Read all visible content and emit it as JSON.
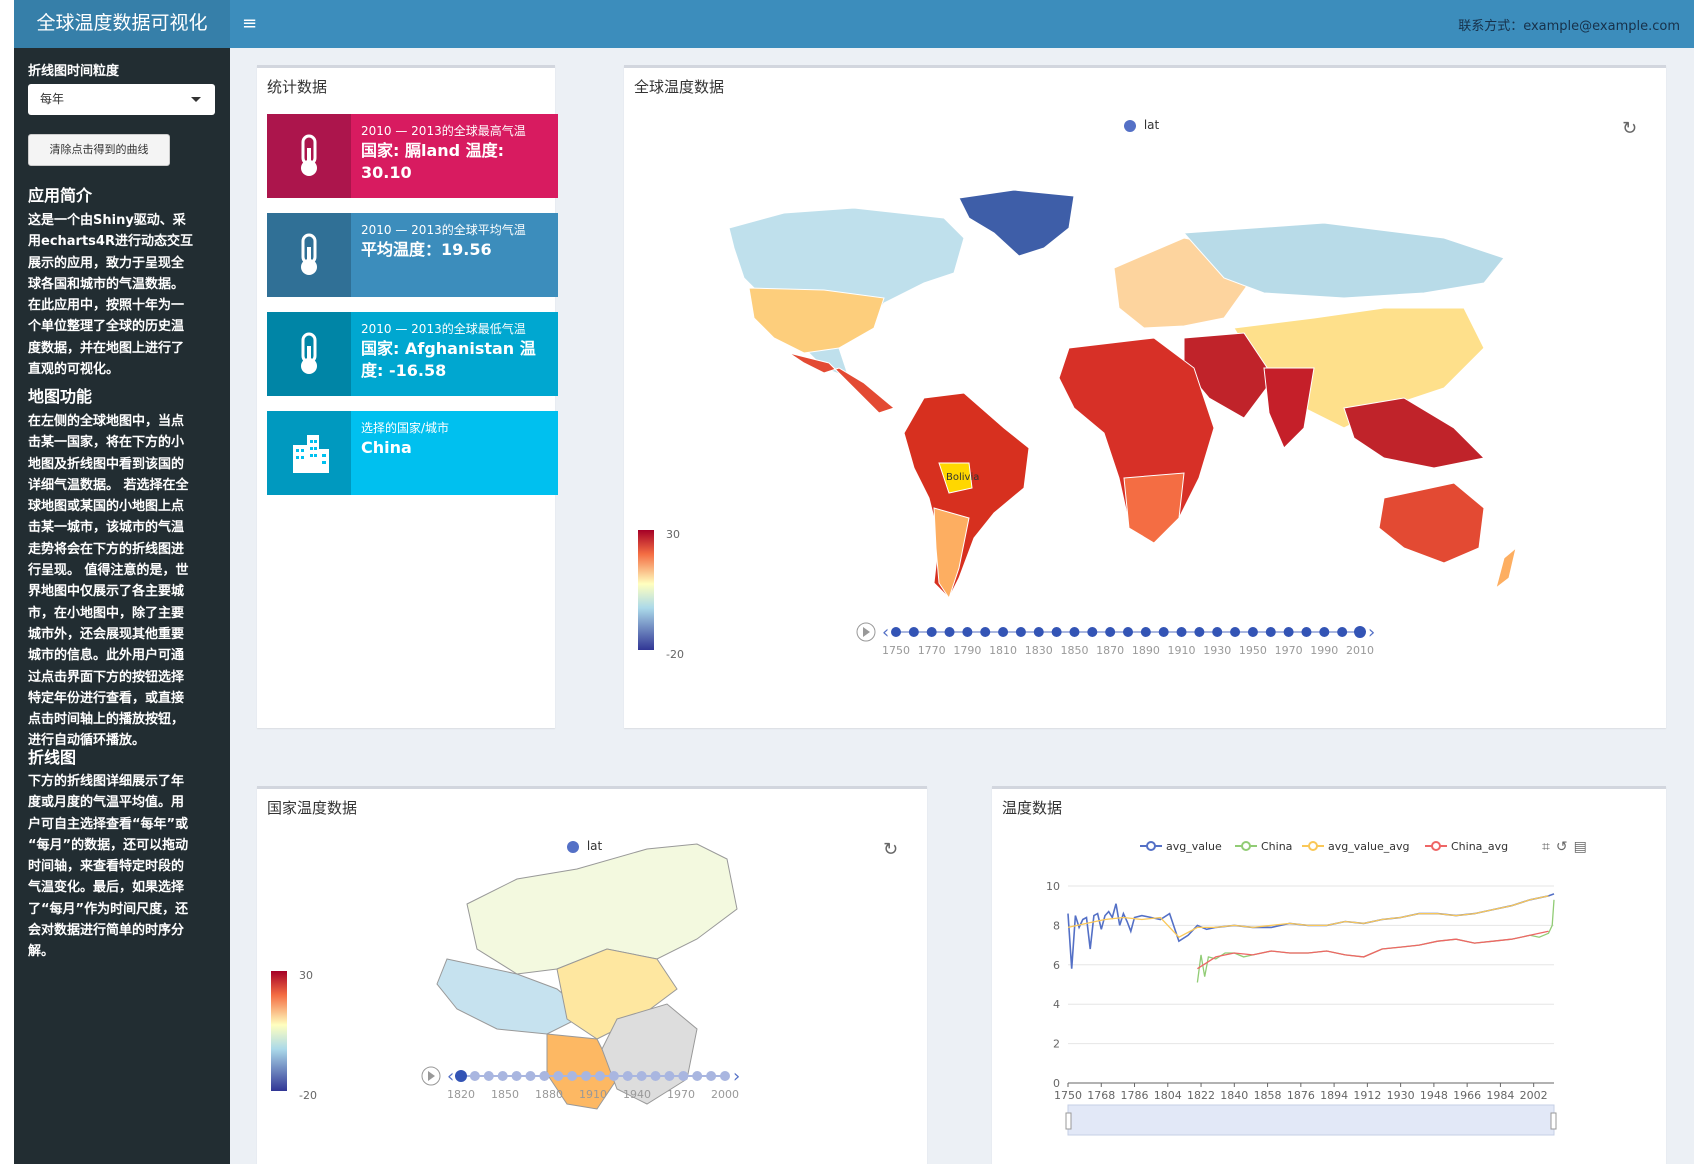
{
  "header": {
    "app_title": "全球温度数据可视化",
    "menu_icon": "hamburger-icon",
    "contact": "联系方式：example@example.com"
  },
  "sidebar": {
    "granularity_label": "折线图时间粒度",
    "granularity_value": "每年",
    "clear_button": "清除点击得到的曲线",
    "sections": [
      {
        "heading": "应用简介",
        "lines": [
          "这是一个由Shiny驱动、采",
          "用echarts4R进行动态交互",
          "展示的应用，致力于呈现全",
          "球各国和城市的气温数据。",
          "在此应用中，按照十年为一",
          "个单位整理了全球的历史温",
          "度数据，并在地图上进行了",
          "直观的可视化。"
        ]
      },
      {
        "heading": "地图功能",
        "lines": [
          "在左侧的全球地图中，当点",
          "击某一国家，将在下方的小",
          "地图及折线图中看到该国的",
          "详细气温数据。 若选择在全",
          "球地图或某国的小地图上点",
          "击某一城市，该城市的气温",
          "走势将会在下方的折线图进",
          "行呈现。 值得注意的是，世",
          "界地图中仅展示了各主要城",
          "市，在小地图中，除了主要",
          "城市外，还会展现其他重要",
          "城市的信息。此外用户可通",
          "过点击界面下方的按钮选择",
          "特定年份进行查看，或直接",
          "点击时间轴上的播放按钮，",
          "进行自动循环播放。"
        ]
      },
      {
        "heading": "折线图",
        "lines": [
          "下方的折线图详细展示了年",
          "度或月度的气温平均值。用",
          "户可自主选择查看“每年”或",
          "“每月”的数据，还可以拖动",
          "时间轴，来查看特定时段的",
          "气温变化。最后，如果选择",
          "了“每月”作为时间尺度，还",
          "会对数据进行简单的时序分",
          "解。"
        ]
      }
    ]
  },
  "stats": {
    "title": "统计数据",
    "boxes": [
      {
        "label": "2010 — 2013的全球最高气温",
        "value": "国家: 膈land 温度: 30.10",
        "color": "#d81b60",
        "icon": "thermometer-icon"
      },
      {
        "label": "2010 — 2013的全球平均气温",
        "value": "平均温度：19.56",
        "color": "#3c8dbc",
        "icon": "thermometer-icon"
      },
      {
        "label": "2010 — 2013的全球最低气温",
        "value": "国家: Afghanistan 温度: -16.58",
        "color": "#00a7d0",
        "icon": "thermometer-icon"
      },
      {
        "label": "选择的国家/城市",
        "value": "China",
        "color": "#00c0ef",
        "icon": "city-icon"
      }
    ]
  },
  "world_map": {
    "title": "全球温度数据",
    "legend": "lat",
    "visual_max": "30",
    "visual_min": "-20",
    "highlight_label": "Bolivia",
    "timeline_ticks": [
      "1750",
      "1770",
      "1790",
      "1810",
      "1830",
      "1850",
      "1870",
      "1890",
      "1910",
      "1930",
      "1950",
      "1970",
      "1990",
      "2010"
    ],
    "timeline_count": 27
  },
  "country_map": {
    "title": "国家温度数据",
    "legend": "lat",
    "visual_max": "30",
    "visual_min": "-20",
    "timeline_ticks": [
      "1820",
      "1850",
      "1880",
      "1910",
      "1940",
      "1970",
      "2000"
    ],
    "timeline_count": 20
  },
  "chart_data": {
    "type": "line",
    "title": "温度数据",
    "legend": [
      "avg_value",
      "China",
      "avg_value_avg",
      "China_avg"
    ],
    "series_colors": [
      "#5470c6",
      "#91cc75",
      "#fac858",
      "#ee6666"
    ],
    "x_ticks": [
      "1750",
      "1768",
      "1786",
      "1804",
      "1822",
      "1840",
      "1858",
      "1876",
      "1894",
      "1912",
      "1930",
      "1948",
      "1966",
      "1984",
      "2002"
    ],
    "y_ticks": [
      "0",
      "2",
      "4",
      "6",
      "8",
      "10"
    ],
    "xlim": [
      1750,
      2013
    ],
    "ylim": [
      0,
      10
    ],
    "series": [
      {
        "name": "avg_value",
        "x": [
          1750,
          1752,
          1754,
          1756,
          1758,
          1760,
          1762,
          1764,
          1766,
          1768,
          1770,
          1772,
          1774,
          1776,
          1778,
          1780,
          1782,
          1784,
          1786,
          1790,
          1795,
          1800,
          1805,
          1810,
          1815,
          1820,
          1825,
          1830,
          1840,
          1850,
          1860,
          1870,
          1880,
          1890,
          1900,
          1910,
          1920,
          1930,
          1940,
          1950,
          1960,
          1970,
          1980,
          1990,
          2000,
          2010,
          2013
        ],
        "y": [
          8.6,
          5.8,
          8.5,
          7.9,
          8.3,
          8.4,
          6.8,
          8.5,
          8.6,
          7.8,
          8.5,
          8.7,
          8.4,
          9.1,
          8.0,
          8.6,
          8.2,
          7.7,
          8.4,
          8.5,
          8.4,
          8.3,
          8.6,
          7.2,
          7.5,
          8.0,
          7.8,
          7.9,
          8.0,
          7.9,
          7.9,
          8.1,
          8.0,
          8.0,
          8.2,
          8.1,
          8.3,
          8.4,
          8.6,
          8.6,
          8.5,
          8.6,
          8.8,
          9.0,
          9.3,
          9.5,
          9.6
        ]
      },
      {
        "name": "China",
        "x": [
          1820,
          1822,
          1824,
          1826,
          1830,
          1835,
          1840,
          1845,
          1850,
          1860,
          1870,
          1880,
          1890,
          1900,
          1910,
          1920,
          1930,
          1940,
          1950,
          1960,
          1970,
          1980,
          1990,
          2000,
          2005,
          2010,
          2012,
          2013
        ],
        "y": [
          5.1,
          6.5,
          5.4,
          6.4,
          6.3,
          6.6,
          6.6,
          6.4,
          6.5,
          6.7,
          6.6,
          6.6,
          6.7,
          6.5,
          6.4,
          6.8,
          6.9,
          7.0,
          7.2,
          7.3,
          7.1,
          7.2,
          7.3,
          7.5,
          7.4,
          7.6,
          8.0,
          9.3
        ]
      },
      {
        "name": "avg_value_avg",
        "x": [
          1750,
          1760,
          1770,
          1780,
          1790,
          1800,
          1810,
          1820,
          1830,
          1840,
          1850,
          1860,
          1870,
          1880,
          1890,
          1900,
          1910,
          1920,
          1930,
          1940,
          1950,
          1960,
          1970,
          1980,
          1990,
          2000,
          2010
        ],
        "y": [
          7.9,
          8.1,
          8.3,
          8.4,
          8.3,
          8.4,
          7.4,
          7.9,
          7.9,
          8.0,
          7.9,
          8.0,
          8.1,
          8.0,
          8.0,
          8.2,
          8.1,
          8.3,
          8.4,
          8.6,
          8.6,
          8.5,
          8.6,
          8.8,
          9.0,
          9.3,
          9.5
        ]
      },
      {
        "name": "China_avg",
        "x": [
          1820,
          1830,
          1840,
          1850,
          1860,
          1870,
          1880,
          1890,
          1900,
          1910,
          1920,
          1930,
          1940,
          1950,
          1960,
          1970,
          1980,
          1990,
          2000,
          2010
        ],
        "y": [
          5.8,
          6.4,
          6.6,
          6.5,
          6.7,
          6.6,
          6.6,
          6.7,
          6.5,
          6.4,
          6.8,
          6.9,
          7.0,
          7.2,
          7.3,
          7.1,
          7.2,
          7.3,
          7.5,
          7.7
        ]
      }
    ]
  }
}
